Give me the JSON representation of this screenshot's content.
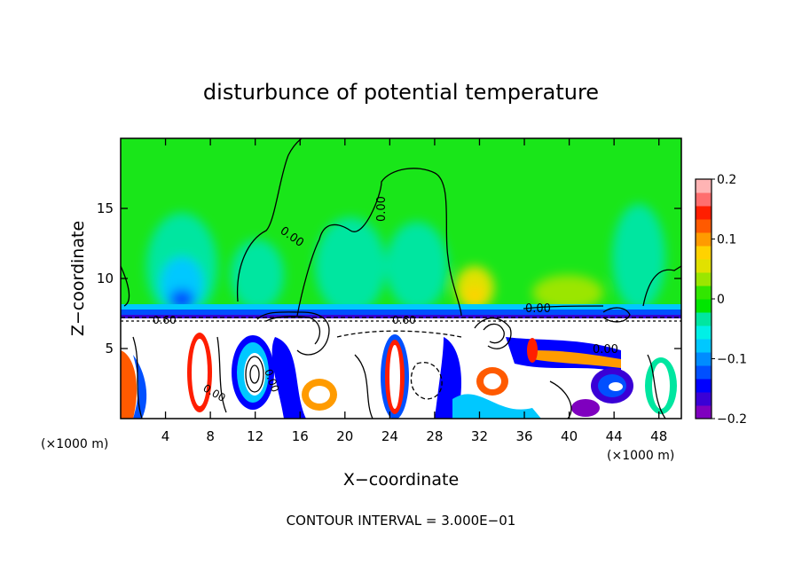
{
  "chart_data": {
    "type": "heatmap",
    "title": "disturbunce of potential temperature",
    "xlabel": "X−coordinate",
    "ylabel": "Z−coordinate",
    "x_unit_left": "(×1000 m)",
    "x_unit_right": "(×1000 m)",
    "xlim": [
      0,
      50
    ],
    "ylim": [
      0,
      20
    ],
    "x_ticks": [
      4,
      8,
      12,
      16,
      20,
      24,
      28,
      32,
      36,
      40,
      44,
      48
    ],
    "y_ticks": [
      5,
      10,
      15
    ],
    "colorbar": {
      "range": [
        -0.2,
        0.2
      ],
      "tick_values": [
        0.2,
        0.1,
        0,
        -0.1,
        -0.2
      ],
      "tick_labels": [
        "0.2",
        "0.1",
        "0",
        "−0.1",
        "−0.2"
      ],
      "colors": [
        "#7f00bf",
        "#3a00d6",
        "#0000ff",
        "#0050ff",
        "#008cff",
        "#00c8ff",
        "#00f0e6",
        "#00e6a0",
        "#00e600",
        "#32e600",
        "#9be600",
        "#e1e100",
        "#ffd200",
        "#ff9b00",
        "#ff5a00",
        "#ff1e00",
        "#ff6e6e",
        "#ffb4b4"
      ]
    },
    "contour_labels": [
      "0.00",
      "0.00",
      "0.00",
      "0.60",
      "0.60",
      "0.00",
      "0.00",
      "0.00"
    ],
    "footer": "CONTOUR INTERVAL = 3.000E−01"
  }
}
